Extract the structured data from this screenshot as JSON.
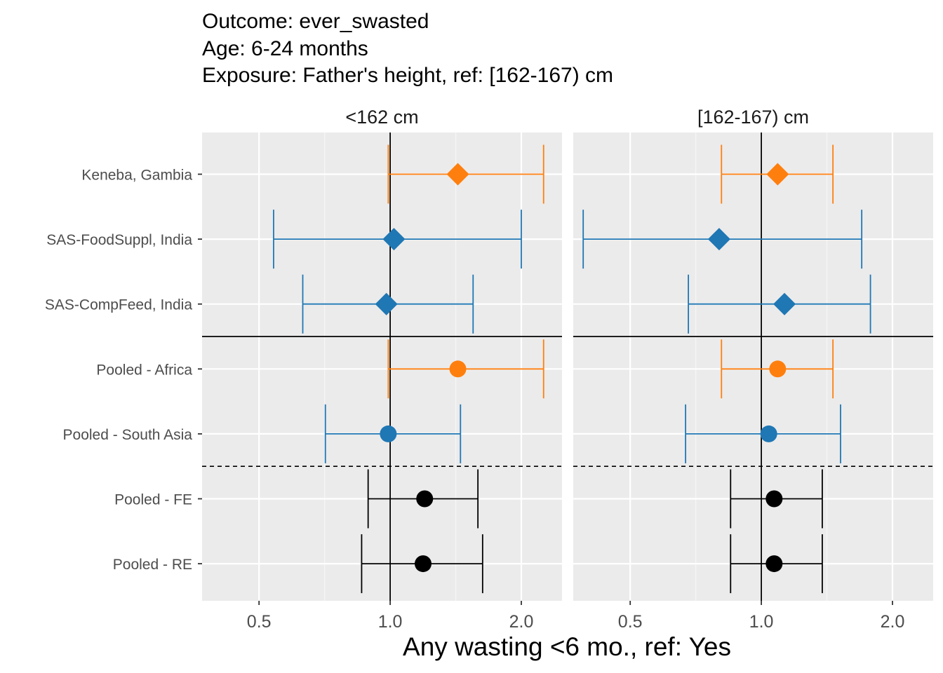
{
  "title_lines": [
    "Outcome: ever_swasted",
    "Age: 6-24 months",
    "Exposure: Father's height, ref: [162-167) cm"
  ],
  "chart_data": {
    "type": "forest",
    "x_scale": "log",
    "xlabel": "Any wasting  <6 mo., ref: Yes",
    "x_ticks": [
      0.5,
      1.0,
      2.0
    ],
    "x_tick_labels": [
      "0.5",
      "1.0",
      "2.0"
    ],
    "xlim": [
      0.37,
      2.48
    ],
    "reference_line": 1.0,
    "grid": true,
    "rows": [
      "Keneba, Gambia",
      "SAS-FoodSuppl, India",
      "SAS-CompFeed, India",
      "Pooled - Africa",
      "Pooled - South Asia",
      "Pooled - FE",
      "Pooled - RE"
    ],
    "colors": {
      "Africa": "#ff7f0e",
      "South Asia": "#1f77b4",
      "Pooled": "#000000"
    },
    "panels": [
      {
        "label": "<162 cm",
        "points": [
          {
            "row": "Keneba, Gambia",
            "est": 1.43,
            "lo": 0.99,
            "hi": 2.25,
            "shape": "diamond",
            "group": "Africa"
          },
          {
            "row": "SAS-FoodSuppl, India",
            "est": 1.02,
            "lo": 0.54,
            "hi": 2.0,
            "shape": "diamond",
            "group": "South Asia"
          },
          {
            "row": "SAS-CompFeed, India",
            "est": 0.98,
            "lo": 0.63,
            "hi": 1.55,
            "shape": "diamond",
            "group": "South Asia"
          },
          {
            "row": "Pooled - Africa",
            "est": 1.43,
            "lo": 0.99,
            "hi": 2.25,
            "shape": "circle",
            "group": "Africa"
          },
          {
            "row": "Pooled - South Asia",
            "est": 0.99,
            "lo": 0.71,
            "hi": 1.45,
            "shape": "circle",
            "group": "South Asia"
          },
          {
            "row": "Pooled - FE",
            "est": 1.2,
            "lo": 0.89,
            "hi": 1.59,
            "shape": "circle",
            "group": "Pooled"
          },
          {
            "row": "Pooled - RE",
            "est": 1.19,
            "lo": 0.86,
            "hi": 1.63,
            "shape": "circle",
            "group": "Pooled"
          }
        ]
      },
      {
        "label": "[162-167) cm",
        "points": [
          {
            "row": "Keneba, Gambia",
            "est": 1.09,
            "lo": 0.81,
            "hi": 1.46,
            "shape": "diamond",
            "group": "Africa"
          },
          {
            "row": "SAS-FoodSuppl, India",
            "est": 0.8,
            "lo": 0.39,
            "hi": 1.7,
            "shape": "diamond",
            "group": "South Asia"
          },
          {
            "row": "SAS-CompFeed, India",
            "est": 1.13,
            "lo": 0.68,
            "hi": 1.78,
            "shape": "diamond",
            "group": "South Asia"
          },
          {
            "row": "Pooled - Africa",
            "est": 1.09,
            "lo": 0.81,
            "hi": 1.46,
            "shape": "circle",
            "group": "Africa"
          },
          {
            "row": "Pooled - South Asia",
            "est": 1.04,
            "lo": 0.67,
            "hi": 1.52,
            "shape": "circle",
            "group": "South Asia"
          },
          {
            "row": "Pooled - FE",
            "est": 1.07,
            "lo": 0.85,
            "hi": 1.38,
            "shape": "circle",
            "group": "Pooled"
          },
          {
            "row": "Pooled - RE",
            "est": 1.07,
            "lo": 0.85,
            "hi": 1.38,
            "shape": "circle",
            "group": "Pooled"
          }
        ]
      }
    ]
  }
}
